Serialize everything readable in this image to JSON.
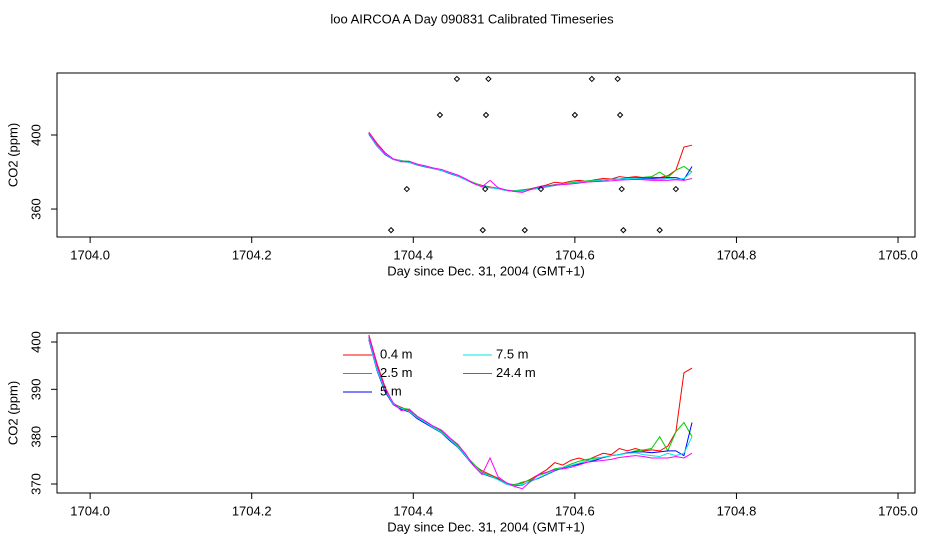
{
  "title": "loo AIRCOA A  Day 090831  Calibrated Timeseries",
  "chart_data": [
    {
      "type": "line",
      "xlabel": "Day since Dec. 31, 2004 (GMT+1)",
      "ylabel": "CO2 (ppm)",
      "xlim": [
        1703.959,
        1705.021
      ],
      "xticks": [
        {
          "value": 1704,
          "label": "1704.0"
        },
        1704.2,
        1704.4,
        1704.6,
        1704.8,
        {
          "value": 1705,
          "label": "1705.0"
        }
      ],
      "ylim": [
        344.9,
        433.5
      ],
      "yticks": [
        360,
        400
      ],
      "x": [
        1704.345,
        1704.355,
        1704.365,
        1704.375,
        1704.385,
        1704.395,
        1704.405,
        1704.415,
        1704.425,
        1704.435,
        1704.445,
        1704.455,
        1704.465,
        1704.475,
        1704.485,
        1704.495,
        1704.505,
        1704.515,
        1704.525,
        1704.535,
        1704.545,
        1704.555,
        1704.565,
        1704.575,
        1704.585,
        1704.595,
        1704.605,
        1704.615,
        1704.625,
        1704.635,
        1704.645,
        1704.655,
        1704.665,
        1704.675,
        1704.685,
        1704.695,
        1704.705,
        1704.715,
        1704.725,
        1704.735,
        1704.745
      ],
      "series": [
        {
          "color": "#ff0000",
          "values": [
            401.5,
            395.5,
            390.5,
            387,
            386.2,
            385.5,
            384.2,
            383,
            382,
            381,
            379.5,
            378,
            376,
            374,
            372.8,
            372,
            371.2,
            370,
            369.9,
            370.2,
            371,
            372,
            373,
            374.5,
            374,
            375,
            375.5,
            375,
            375.8,
            376.5,
            376.2,
            377.5,
            377,
            377.5,
            377,
            377.2,
            377,
            378,
            381,
            393.5,
            394.5
          ]
        },
        {
          "color": "#00cd00",
          "values": [
            401,
            394.5,
            390,
            387,
            386,
            385.8,
            384,
            383.2,
            382,
            381.2,
            379.5,
            378.2,
            376,
            374.2,
            372.5,
            371.8,
            371,
            370.2,
            369.8,
            370.4,
            370.8,
            371.8,
            372.4,
            373.2,
            373.5,
            374.2,
            374.8,
            375.2,
            375.5,
            375.6,
            376,
            376.2,
            376.5,
            377,
            377.2,
            377.5,
            380,
            377,
            381,
            383,
            380
          ]
        },
        {
          "color": "#0000ff",
          "values": [
            400.5,
            394,
            389.5,
            386.8,
            385.8,
            385.2,
            383.8,
            382.8,
            381.8,
            380.8,
            379.2,
            377.8,
            375.8,
            373.8,
            372.2,
            371.6,
            371,
            370,
            369.6,
            369.8,
            370.6,
            371.2,
            372,
            372.8,
            373.4,
            373.8,
            374.2,
            374.6,
            375,
            375.6,
            376,
            376.2,
            376.6,
            376.8,
            376.8,
            376.6,
            376.8,
            377,
            377,
            376,
            383
          ]
        },
        {
          "color": "#00e5e5",
          "values": [
            400.8,
            394.2,
            389.8,
            386.9,
            386,
            385.3,
            384,
            383,
            381.9,
            380.9,
            379.4,
            377.9,
            375.9,
            373.9,
            372.3,
            371.7,
            370.9,
            370,
            369.7,
            369.9,
            370.5,
            371.3,
            372.1,
            372.9,
            373.5,
            373.9,
            374.4,
            374.9,
            375.2,
            375.7,
            376,
            376.2,
            376.5,
            376.6,
            376.2,
            376,
            375.8,
            376.5,
            376,
            376.5,
            380
          ]
        },
        {
          "color": "#ff00ff",
          "values": [
            401.2,
            395,
            390.2,
            387.2,
            385.5,
            385.8,
            384.3,
            383.3,
            382.2,
            381.4,
            379.8,
            378.4,
            376.3,
            373.8,
            372,
            375.5,
            371.5,
            370.3,
            369.5,
            369,
            370.5,
            372,
            372.5,
            373,
            373.2,
            373.5,
            374,
            374.6,
            374.8,
            375,
            375.2,
            375.6,
            375.8,
            376,
            375.8,
            375.5,
            375.5,
            375.5,
            375.8,
            375.5,
            376.5
          ]
        }
      ],
      "points": {
        "color": "#000000",
        "x": [
          1704.3725,
          1704.392,
          1704.433,
          1704.454,
          1704.486,
          1704.489,
          1704.49,
          1704.493,
          1704.538,
          1704.558,
          1704.6,
          1704.621,
          1704.653,
          1704.656,
          1704.658,
          1704.66,
          1704.705,
          1704.725
        ],
        "y": [
          348.6,
          370.8,
          410.8,
          430.3,
          348.6,
          370.8,
          410.8,
          430.3,
          348.6,
          370.8,
          410.8,
          430.3,
          430.3,
          410.8,
          370.8,
          348.6,
          348.6,
          370.8
        ]
      }
    },
    {
      "type": "line",
      "xlabel": "Day since Dec. 31, 2004 (GMT+1)",
      "ylabel": "CO2 (ppm)",
      "xlim": [
        1703.959,
        1705.021
      ],
      "xticks": [
        {
          "value": 1704,
          "label": "1704.0"
        },
        1704.2,
        1704.4,
        1704.6,
        1704.8,
        {
          "value": 1705,
          "label": "1705.0"
        }
      ],
      "ylim": [
        368.1,
        401.9
      ],
      "yticks": [
        370,
        380,
        390,
        400
      ],
      "x": [
        1704.345,
        1704.355,
        1704.365,
        1704.375,
        1704.385,
        1704.395,
        1704.405,
        1704.415,
        1704.425,
        1704.435,
        1704.445,
        1704.455,
        1704.465,
        1704.475,
        1704.485,
        1704.495,
        1704.505,
        1704.515,
        1704.525,
        1704.535,
        1704.545,
        1704.555,
        1704.565,
        1704.575,
        1704.585,
        1704.595,
        1704.605,
        1704.615,
        1704.625,
        1704.635,
        1704.645,
        1704.655,
        1704.665,
        1704.675,
        1704.685,
        1704.695,
        1704.705,
        1704.715,
        1704.725,
        1704.735,
        1704.745
      ],
      "series": [
        {
          "name": "0.4 m",
          "color": "#ff0000",
          "values": [
            401.5,
            395.5,
            390.5,
            387,
            386.2,
            385.5,
            384.2,
            383,
            382,
            381,
            379.5,
            378,
            376,
            374,
            372.8,
            372,
            371.2,
            370,
            369.9,
            370.2,
            371,
            372,
            373,
            374.5,
            374,
            375,
            375.5,
            375,
            375.8,
            376.5,
            376.2,
            377.5,
            377,
            377.5,
            377,
            377.2,
            377,
            378,
            381,
            393.5,
            394.5
          ]
        },
        {
          "name": "2.5 m",
          "color": "#00cd00",
          "values": [
            401,
            394.5,
            390,
            387,
            386,
            385.8,
            384,
            383.2,
            382,
            381.2,
            379.5,
            378.2,
            376,
            374.2,
            372.5,
            371.8,
            371,
            370.2,
            369.8,
            370.4,
            370.8,
            371.8,
            372.4,
            373.2,
            373.5,
            374.2,
            374.8,
            375.2,
            375.5,
            375.6,
            376,
            376.2,
            376.5,
            377,
            377.2,
            377.5,
            380,
            377,
            381,
            383,
            380
          ]
        },
        {
          "name": "5 m",
          "color": "#0000ff",
          "values": [
            400.5,
            394,
            389.5,
            386.8,
            385.8,
            385.2,
            383.8,
            382.8,
            381.8,
            380.8,
            379.2,
            377.8,
            375.8,
            373.8,
            372.2,
            371.6,
            371,
            370,
            369.6,
            369.8,
            370.6,
            371.2,
            372,
            372.8,
            373.4,
            373.8,
            374.2,
            374.6,
            375,
            375.6,
            376,
            376.2,
            376.6,
            376.8,
            376.8,
            376.6,
            376.8,
            377,
            377,
            376,
            383
          ]
        },
        {
          "name": "7.5 m",
          "color": "#00e5e5",
          "values": [
            400.8,
            394.2,
            389.8,
            386.9,
            386,
            385.3,
            384,
            383,
            381.9,
            380.9,
            379.4,
            377.9,
            375.9,
            373.9,
            372.3,
            371.7,
            370.9,
            370,
            369.7,
            369.9,
            370.5,
            371.3,
            372.1,
            372.9,
            373.5,
            373.9,
            374.4,
            374.9,
            375.2,
            375.7,
            376,
            376.2,
            376.5,
            376.6,
            376.2,
            376,
            375.8,
            376.5,
            376,
            376.5,
            380
          ]
        },
        {
          "name": "24.4 m",
          "color": "#ff00ff",
          "values": [
            401.2,
            395,
            390.2,
            387.2,
            385.5,
            385.8,
            384.3,
            383.3,
            382.2,
            381.4,
            379.8,
            378.4,
            376.3,
            373.8,
            372,
            375.5,
            371.5,
            370.3,
            369.5,
            369,
            370.5,
            372,
            372.5,
            373,
            373.2,
            373.5,
            374,
            374.6,
            374.8,
            375,
            375.2,
            375.6,
            375.8,
            376,
            375.8,
            375.5,
            375.5,
            375.5,
            375.8,
            375.5,
            376.5
          ]
        }
      ]
    }
  ]
}
